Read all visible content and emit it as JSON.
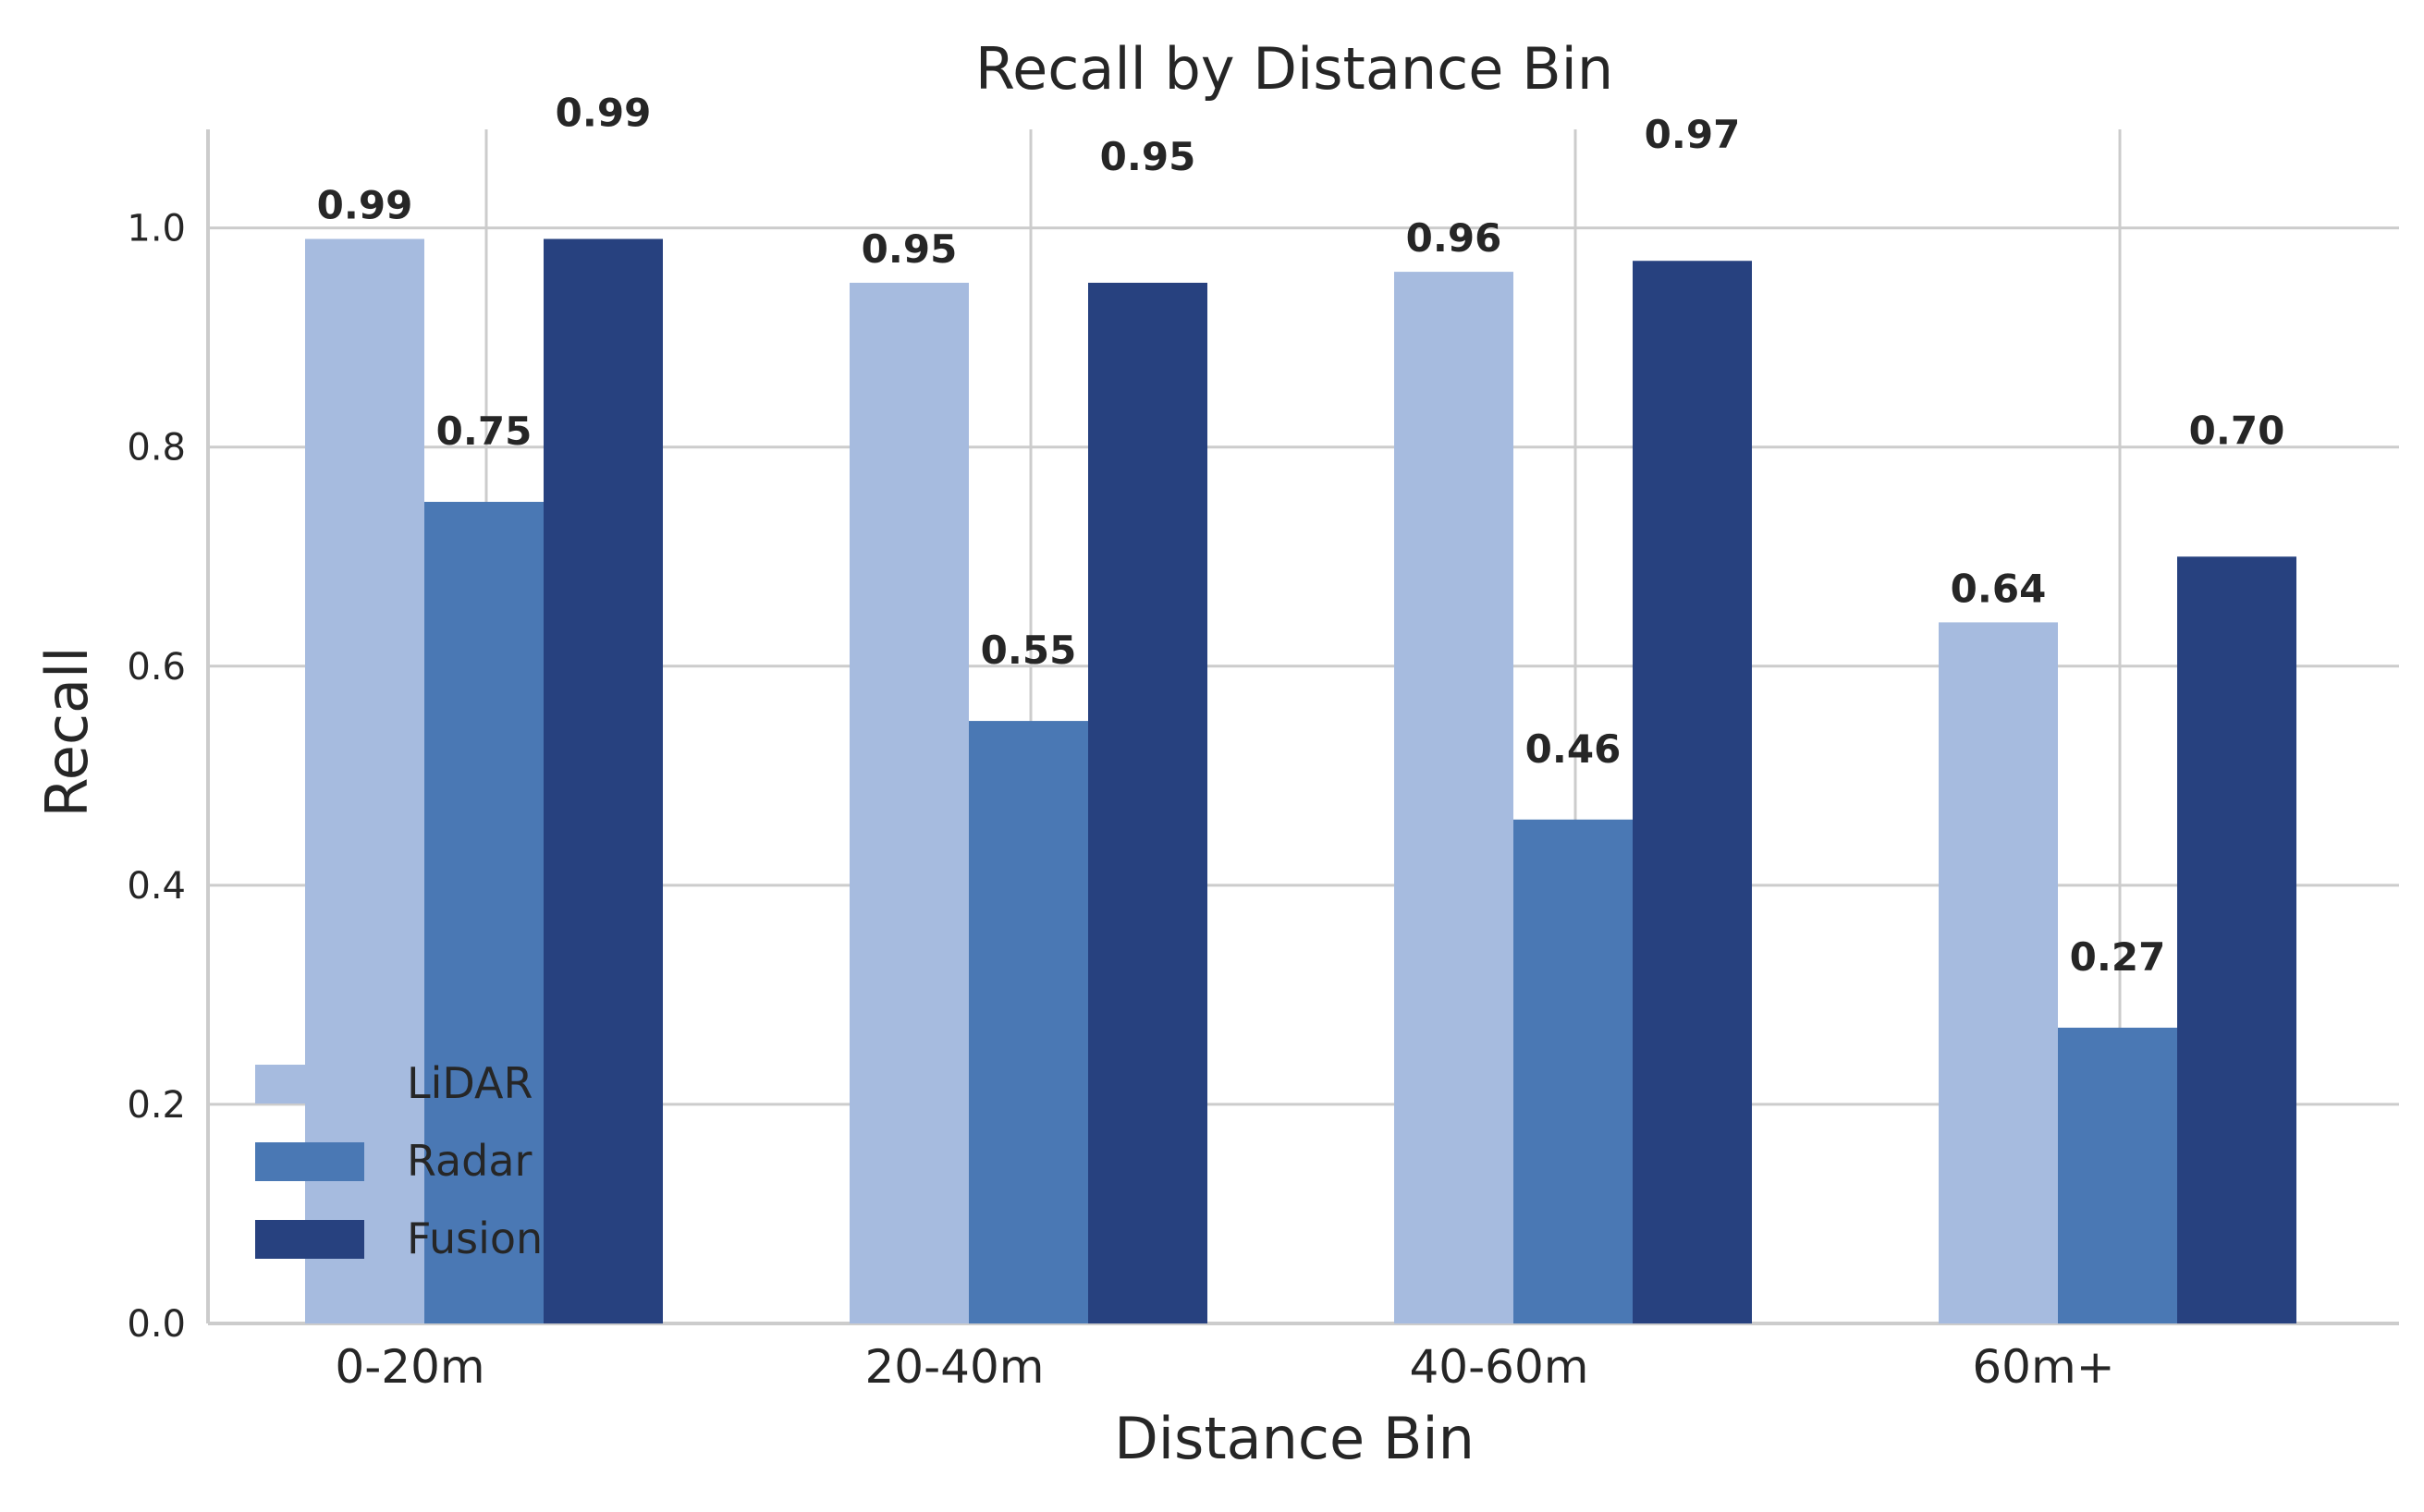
{
  "chart_data": {
    "type": "bar",
    "title": "Recall by Distance Bin",
    "xlabel": "Distance Bin",
    "ylabel": "Recall",
    "categories": [
      "0-20m",
      "20-40m",
      "40-60m",
      "60m+"
    ],
    "series": [
      {
        "name": "LiDAR",
        "color": "#a6bbdf",
        "values": [
          0.99,
          0.95,
          0.96,
          0.64
        ],
        "labels": [
          "0.99",
          "0.95",
          "0.96",
          "0.64"
        ]
      },
      {
        "name": "Radar",
        "color": "#4a78b4",
        "values": [
          0.75,
          0.55,
          0.46,
          0.27
        ],
        "labels": [
          "0.75",
          "0.55",
          "0.46",
          "0.27"
        ]
      },
      {
        "name": "Fusion",
        "color": "#27417f",
        "values": [
          0.99,
          0.95,
          0.97,
          0.7
        ],
        "labels": [
          "0.99",
          "0.95",
          "0.97",
          "0.70"
        ]
      }
    ],
    "ylim": [
      0,
      1.09
    ],
    "yticks": [
      0.0,
      0.2,
      0.4,
      0.6,
      0.8,
      1.0
    ],
    "ytick_labels": [
      "0.0",
      "0.2",
      "0.4",
      "0.6",
      "0.8",
      "1.0"
    ],
    "grid": true,
    "legend_position": "lower-left"
  }
}
